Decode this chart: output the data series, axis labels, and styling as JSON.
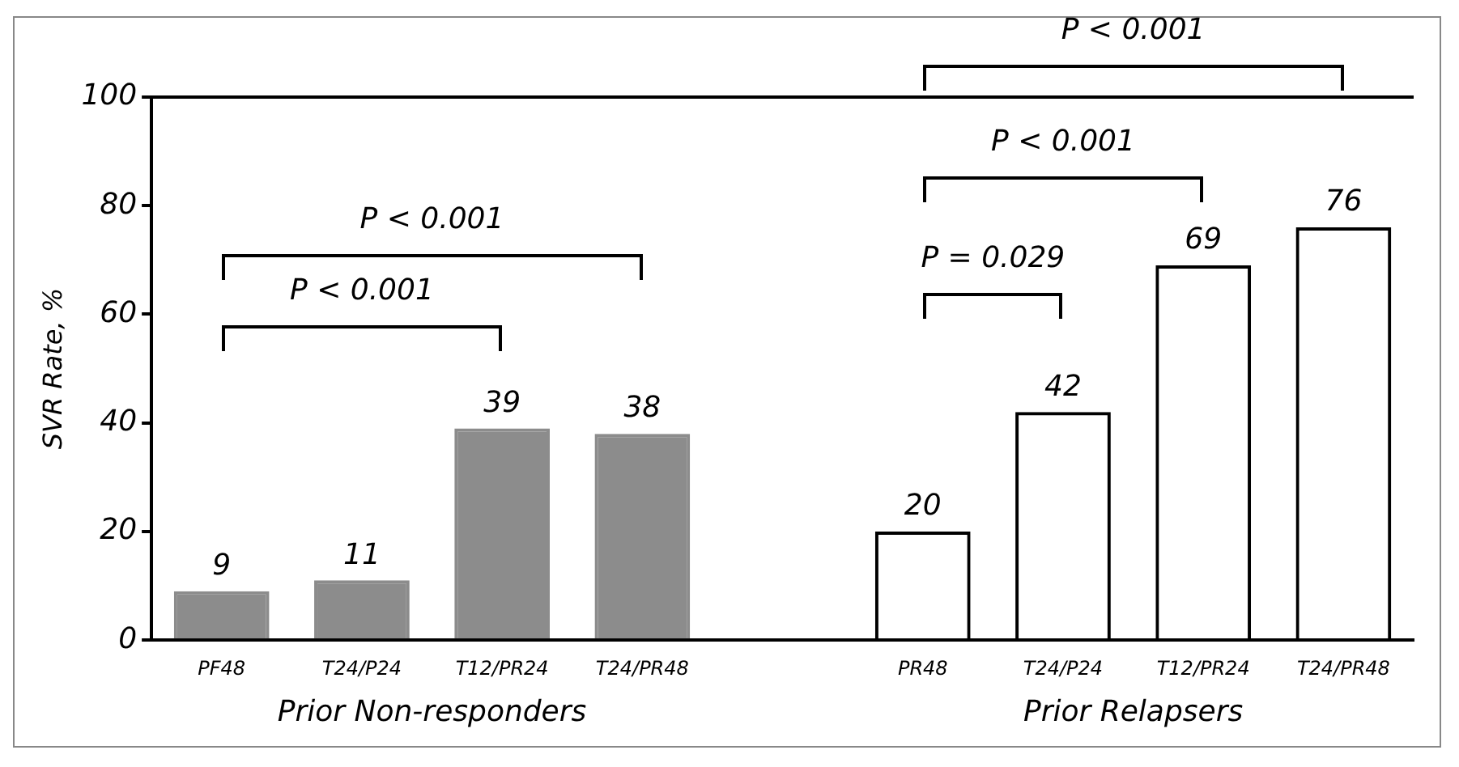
{
  "chart_data": {
    "type": "bar",
    "ylabel": "SVR Rate, %",
    "categories": [
      "PF48",
      "T24/P24",
      "T12/PR24",
      "T24/PR48",
      null,
      "PR48",
      "T24/P24",
      "T12/PR24",
      "T24/PR48"
    ],
    "values": [
      9,
      11,
      39,
      38,
      null,
      20,
      42,
      69,
      76
    ],
    "colors": [
      "#8c8c8c",
      "#8c8c8c",
      "#8c8c8c",
      "#8c8c8c",
      "#000000",
      "#000000",
      "#000000",
      "#000000",
      "#000000"
    ],
    "ylim": [
      0,
      100
    ],
    "yticks": [
      0,
      20,
      40,
      60,
      80,
      100
    ],
    "grid": false,
    "legend": false,
    "data_labels": true,
    "annotations": [
      "Prior Non-responders",
      "Prior Relapsers",
      "P < 0.001",
      "P < 0.001",
      "P = 0.029",
      "P < 0.001",
      "P < 0.001"
    ]
  }
}
